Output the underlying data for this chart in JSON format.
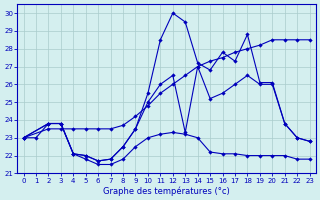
{
  "title": "Graphe des températures (°c)",
  "bg_color": "#d4efef",
  "line_color": "#0000bb",
  "grid_color": "#aacccc",
  "xlim": [
    -0.5,
    23.5
  ],
  "ylim": [
    21,
    30.5
  ],
  "xticks": [
    0,
    1,
    2,
    3,
    4,
    5,
    6,
    7,
    8,
    9,
    10,
    11,
    12,
    13,
    14,
    15,
    16,
    17,
    18,
    19,
    20,
    21,
    22,
    23
  ],
  "yticks": [
    21,
    22,
    23,
    24,
    25,
    26,
    27,
    28,
    29,
    30
  ],
  "curve1_x": [
    0,
    1,
    2,
    3,
    4,
    5,
    6,
    7,
    8,
    9,
    10,
    11,
    12,
    13,
    14,
    15,
    16,
    17,
    18,
    19,
    20,
    21,
    22,
    23
  ],
  "curve1_y": [
    23.0,
    23.0,
    23.8,
    23.8,
    22.1,
    21.8,
    21.5,
    21.5,
    21.8,
    22.5,
    23.0,
    23.2,
    23.3,
    23.2,
    23.0,
    22.2,
    22.1,
    22.1,
    22.0,
    22.0,
    22.0,
    22.0,
    21.8,
    21.8
  ],
  "curve2_x": [
    0,
    2,
    3,
    4,
    5,
    6,
    7,
    8,
    9,
    10,
    11,
    12,
    13,
    14,
    15,
    16,
    17,
    18,
    19,
    20,
    21,
    22,
    23
  ],
  "curve2_y": [
    23.0,
    23.5,
    23.5,
    23.5,
    23.5,
    23.5,
    23.5,
    23.7,
    24.2,
    24.8,
    25.5,
    26.0,
    26.5,
    27.0,
    27.3,
    27.5,
    27.8,
    28.0,
    28.2,
    28.5,
    28.5,
    28.5,
    28.5
  ],
  "curve3_x": [
    0,
    2,
    3,
    4,
    5,
    6,
    7,
    8,
    9,
    10,
    11,
    12,
    13,
    14,
    15,
    16,
    17,
    18,
    19,
    20,
    21,
    22,
    23
  ],
  "curve3_y": [
    23.0,
    23.8,
    23.8,
    22.1,
    22.0,
    21.7,
    21.8,
    22.5,
    23.5,
    25.5,
    28.5,
    30.0,
    29.5,
    27.2,
    26.8,
    27.8,
    27.3,
    28.8,
    26.1,
    26.1,
    23.8,
    23.0,
    22.8
  ],
  "curve4_x": [
    0,
    2,
    3,
    4,
    5,
    6,
    7,
    8,
    9,
    10,
    11,
    12,
    13,
    14,
    15,
    16,
    17,
    18,
    19,
    20,
    21,
    22,
    23
  ],
  "curve4_y": [
    23.0,
    23.8,
    23.8,
    22.1,
    22.0,
    21.7,
    21.8,
    22.5,
    23.5,
    25.0,
    26.0,
    26.5,
    23.3,
    27.0,
    25.2,
    25.5,
    26.0,
    26.5,
    26.0,
    26.0,
    23.8,
    23.0,
    22.8
  ]
}
